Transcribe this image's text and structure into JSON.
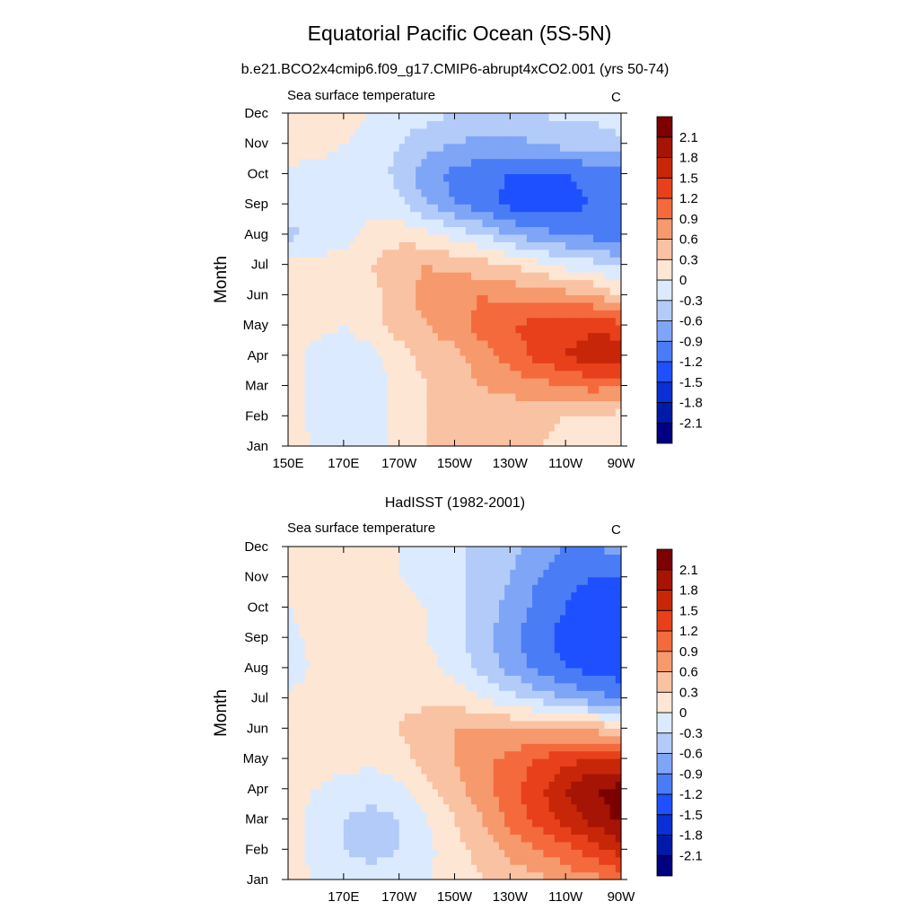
{
  "figure": {
    "title": "Equatorial Pacific Ocean (5S-5N)"
  },
  "chart_data": [
    {
      "type": "heatmap",
      "title": "b.e21.BCO2x4cmip6.f09_g17.CMIP6-abrupt4xCO2.001 (yrs 50-74)",
      "left_label": "Sea surface temperature",
      "units": "C",
      "xlabel": "",
      "ylabel": "Month",
      "x_ticks": [
        "150E",
        "170E",
        "170W",
        "150W",
        "130W",
        "110W",
        "90W"
      ],
      "x_tick_lon": [
        150,
        170,
        190,
        210,
        230,
        250,
        270
      ],
      "xlim": [
        150,
        270
      ],
      "y_ticks": [
        "Jan",
        "Feb",
        "Mar",
        "Apr",
        "May",
        "Jun",
        "Jul",
        "Aug",
        "Sep",
        "Oct",
        "Nov",
        "Dec"
      ],
      "color_levels": [
        "-2.1",
        "-1.8",
        "-1.5",
        "-1.2",
        "-0.9",
        "-0.6",
        "-0.3",
        "0",
        "0.3",
        "0.6",
        "0.9",
        "1.2",
        "1.5",
        "1.8",
        "2.1"
      ],
      "grid_lon": [
        150,
        160,
        170,
        180,
        190,
        200,
        210,
        220,
        230,
        240,
        250,
        260,
        270
      ],
      "values": [
        [
          0.1,
          0.0,
          -0.1,
          -0.1,
          0.1,
          0.3,
          0.3,
          0.3,
          0.4,
          0.3,
          0.2,
          0.1,
          0.1
        ],
        [
          0.1,
          -0.1,
          -0.2,
          -0.2,
          0.1,
          0.3,
          0.4,
          0.4,
          0.4,
          0.4,
          0.3,
          0.3,
          0.2
        ],
        [
          0.1,
          -0.1,
          -0.2,
          -0.2,
          0.1,
          0.3,
          0.4,
          0.6,
          0.7,
          0.8,
          0.9,
          1.0,
          0.9
        ],
        [
          0.1,
          -0.1,
          -0.2,
          -0.1,
          0.2,
          0.4,
          0.5,
          0.8,
          1.0,
          1.3,
          1.5,
          1.7,
          1.8
        ],
        [
          0.2,
          0.1,
          0.0,
          0.2,
          0.4,
          0.6,
          0.8,
          1.0,
          1.2,
          1.3,
          1.4,
          1.4,
          1.3
        ],
        [
          0.2,
          0.1,
          0.1,
          0.2,
          0.5,
          0.7,
          0.8,
          0.9,
          0.8,
          0.8,
          0.7,
          0.6,
          0.3
        ],
        [
          0.2,
          0.1,
          0.1,
          0.3,
          0.5,
          0.6,
          0.5,
          0.4,
          0.3,
          0.1,
          -0.1,
          -0.2,
          -0.4
        ],
        [
          -0.4,
          -0.2,
          -0.1,
          0.1,
          0.2,
          0.1,
          -0.1,
          -0.3,
          -0.6,
          -0.8,
          -0.9,
          -1.0,
          -1.1
        ],
        [
          -0.1,
          -0.2,
          -0.2,
          -0.1,
          -0.2,
          -0.6,
          -0.9,
          -1.1,
          -1.3,
          -1.4,
          -1.3,
          -1.2,
          -1.2
        ],
        [
          -0.1,
          -0.1,
          -0.1,
          -0.1,
          -0.4,
          -0.8,
          -1.0,
          -1.1,
          -1.2,
          -1.2,
          -1.2,
          -1.1,
          -1.1
        ],
        [
          0.2,
          0.1,
          0.0,
          -0.1,
          -0.3,
          -0.5,
          -0.6,
          -0.7,
          -0.7,
          -0.6,
          -0.5,
          -0.5,
          -0.4
        ],
        [
          0.2,
          0.1,
          0.1,
          0.0,
          -0.1,
          -0.2,
          -0.3,
          -0.4,
          -0.4,
          -0.3,
          -0.2,
          -0.2,
          -0.1
        ]
      ]
    },
    {
      "type": "heatmap",
      "title": "HadISST (1982-2001)",
      "left_label": "Sea surface temperature",
      "units": "C",
      "xlabel": "",
      "ylabel": "Month",
      "x_ticks": [
        "170E",
        "170W",
        "150W",
        "130W",
        "110W",
        "90W"
      ],
      "x_tick_lon": [
        170,
        190,
        210,
        230,
        250,
        270
      ],
      "xlim": [
        150,
        270
      ],
      "y_ticks": [
        "Jan",
        "Feb",
        "Mar",
        "Apr",
        "May",
        "Jun",
        "Jul",
        "Aug",
        "Sep",
        "Oct",
        "Nov",
        "Dec"
      ],
      "color_levels": [
        "-2.1",
        "-1.8",
        "-1.5",
        "-1.2",
        "-0.9",
        "-0.6",
        "-0.3",
        "0",
        "0.3",
        "0.6",
        "0.9",
        "1.2",
        "1.5",
        "1.8",
        "2.1"
      ],
      "grid_lon": [
        150,
        160,
        170,
        180,
        190,
        200,
        210,
        220,
        230,
        240,
        250,
        260,
        270
      ],
      "values": [
        [
          0.1,
          0.0,
          -0.1,
          -0.2,
          -0.1,
          0.0,
          0.1,
          0.3,
          0.4,
          0.5,
          0.7,
          0.8,
          1.0
        ],
        [
          0.1,
          -0.1,
          -0.3,
          -0.4,
          -0.3,
          -0.1,
          0.2,
          0.4,
          0.7,
          0.9,
          1.1,
          1.4,
          1.6
        ],
        [
          0.1,
          -0.1,
          -0.3,
          -0.4,
          -0.3,
          0.0,
          0.3,
          0.6,
          1.0,
          1.3,
          1.6,
          1.9,
          2.2
        ],
        [
          0.1,
          0.0,
          -0.1,
          -0.2,
          -0.1,
          0.2,
          0.5,
          0.8,
          1.1,
          1.4,
          1.8,
          2.1,
          2.2
        ],
        [
          0.1,
          0.1,
          0.1,
          0.1,
          0.2,
          0.4,
          0.6,
          0.8,
          1.0,
          1.2,
          1.4,
          1.5,
          1.5
        ],
        [
          0.1,
          0.1,
          0.2,
          0.2,
          0.3,
          0.5,
          0.6,
          0.6,
          0.6,
          0.6,
          0.5,
          0.5,
          0.4
        ],
        [
          0.1,
          0.2,
          0.2,
          0.2,
          0.2,
          0.2,
          0.2,
          0.0,
          -0.2,
          -0.4,
          -0.6,
          -0.8,
          -0.9
        ],
        [
          -0.3,
          0.1,
          0.2,
          0.2,
          0.2,
          0.1,
          -0.1,
          -0.4,
          -0.7,
          -1.0,
          -1.2,
          -1.3,
          -1.4
        ],
        [
          -0.1,
          0.1,
          0.2,
          0.3,
          0.2,
          0.0,
          -0.2,
          -0.5,
          -0.8,
          -1.1,
          -1.3,
          -1.4,
          -1.4
        ],
        [
          0.0,
          0.1,
          0.2,
          0.2,
          0.1,
          0.0,
          -0.2,
          -0.4,
          -0.7,
          -1.0,
          -1.2,
          -1.4,
          -1.4
        ],
        [
          0.1,
          0.1,
          0.1,
          0.1,
          0.0,
          -0.1,
          -0.2,
          -0.4,
          -0.6,
          -0.9,
          -1.1,
          -1.2,
          -1.2
        ],
        [
          0.1,
          0.1,
          0.1,
          0.1,
          0.0,
          -0.1,
          -0.2,
          -0.4,
          -0.5,
          -0.7,
          -0.9,
          -0.9,
          -0.8
        ]
      ]
    }
  ],
  "palette": {
    "bins": [
      "#000080",
      "#001aa8",
      "#0a2fd4",
      "#1e50ff",
      "#4a7cf6",
      "#7fa5f7",
      "#b3cbf8",
      "#dceaff",
      "#fde6d3",
      "#f9c2a2",
      "#f6996c",
      "#f46a3d",
      "#e8401a",
      "#c82608",
      "#a51404",
      "#7c0000"
    ]
  }
}
